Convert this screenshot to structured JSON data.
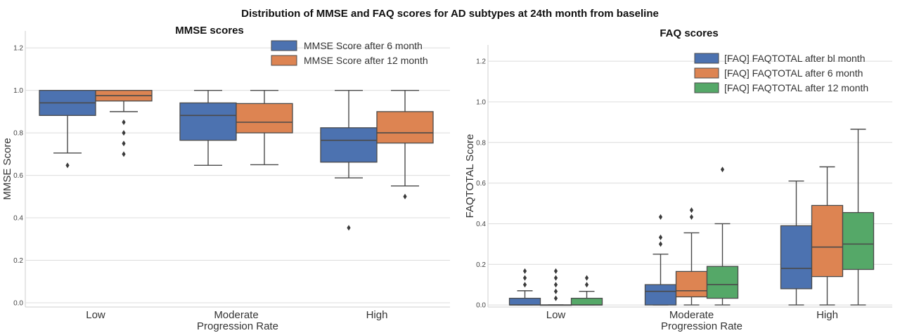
{
  "figure_title": "Distribution of MMSE and FAQ scores for AD subtypes at 24th month from baseline",
  "colors": {
    "blue": "#4c72b0",
    "orange": "#dd8452",
    "green": "#55a868"
  },
  "chart_data": [
    {
      "type": "box",
      "title": "MMSE scores",
      "xlabel": "Progression Rate",
      "ylabel": "MMSE Score",
      "ylim": [
        -0.02,
        1.28
      ],
      "yticks": [
        "0.0",
        "0.2",
        "0.4",
        "0.6",
        "0.8",
        "1.0",
        "1.2"
      ],
      "categories": [
        "Low",
        "Moderate",
        "High"
      ],
      "legend_position": "top-right",
      "grid": true,
      "series": [
        {
          "name": "MMSE Score after 6 month",
          "color": "#4c72b0",
          "boxes": [
            {
              "min": 0.705,
              "q1": 0.882,
              "median": 0.941,
              "q3": 1.0,
              "max": 1.0,
              "outliers": [
                0.647
              ]
            },
            {
              "min": 0.647,
              "q1": 0.765,
              "median": 0.882,
              "q3": 0.941,
              "max": 1.0,
              "outliers": []
            },
            {
              "min": 0.588,
              "q1": 0.662,
              "median": 0.765,
              "q3": 0.824,
              "max": 1.0,
              "outliers": [
                0.353
              ]
            }
          ]
        },
        {
          "name": "MMSE Score after 12 month",
          "color": "#dd8452",
          "boxes": [
            {
              "min": 0.9,
              "q1": 0.95,
              "median": 0.975,
              "q3": 1.0,
              "max": 1.0,
              "outliers": [
                0.85,
                0.8,
                0.75,
                0.7
              ]
            },
            {
              "min": 0.65,
              "q1": 0.8,
              "median": 0.85,
              "q3": 0.938,
              "max": 1.0,
              "outliers": []
            },
            {
              "min": 0.55,
              "q1": 0.752,
              "median": 0.8,
              "q3": 0.9,
              "max": 1.0,
              "outliers": [
                0.5
              ]
            }
          ]
        }
      ]
    },
    {
      "type": "box",
      "title": "FAQ scores",
      "xlabel": "Progression Rate",
      "ylabel": "FAQTOTAL Score",
      "ylim": [
        -0.01,
        1.28
      ],
      "yticks": [
        "0.0",
        "0.2",
        "0.4",
        "0.6",
        "0.8",
        "1.0",
        "1.2"
      ],
      "categories": [
        "Low",
        "Moderate",
        "High"
      ],
      "legend_position": "top-right",
      "grid": true,
      "series": [
        {
          "name": "[FAQ] FAQTOTAL   after bl month",
          "color": "#4c72b0",
          "boxes": [
            {
              "min": 0.0,
              "q1": 0.0,
              "median": 0.0,
              "q3": 0.033,
              "max": 0.07,
              "outliers": [
                0.1,
                0.133,
                0.167
              ]
            },
            {
              "min": 0.0,
              "q1": 0.0,
              "median": 0.067,
              "q3": 0.1,
              "max": 0.25,
              "outliers": [
                0.3,
                0.333,
                0.433
              ]
            },
            {
              "min": 0.0,
              "q1": 0.08,
              "median": 0.18,
              "q3": 0.39,
              "max": 0.61,
              "outliers": []
            }
          ]
        },
        {
          "name": "[FAQ] FAQTOTAL after 6 month",
          "color": "#dd8452",
          "boxes": [
            {
              "min": 0.0,
              "q1": 0.0,
              "median": 0.0,
              "q3": 0.0,
              "max": 0.0,
              "outliers": [
                0.033,
                0.067,
                0.1,
                0.133,
                0.167
              ]
            },
            {
              "min": 0.0,
              "q1": 0.04,
              "median": 0.07,
              "q3": 0.165,
              "max": 0.355,
              "outliers": [
                0.433,
                0.467
              ]
            },
            {
              "min": 0.0,
              "q1": 0.14,
              "median": 0.285,
              "q3": 0.49,
              "max": 0.68,
              "outliers": []
            }
          ]
        },
        {
          "name": "[FAQ] FAQTOTAL   after 12 month",
          "color": "#55a868",
          "boxes": [
            {
              "min": 0.0,
              "q1": 0.0,
              "median": 0.0,
              "q3": 0.033,
              "max": 0.067,
              "outliers": [
                0.1,
                0.133
              ]
            },
            {
              "min": 0.0,
              "q1": 0.033,
              "median": 0.1,
              "q3": 0.19,
              "max": 0.4,
              "outliers": [
                0.667
              ]
            },
            {
              "min": 0.0,
              "q1": 0.175,
              "median": 0.3,
              "q3": 0.455,
              "max": 0.865,
              "outliers": []
            }
          ]
        }
      ]
    }
  ]
}
